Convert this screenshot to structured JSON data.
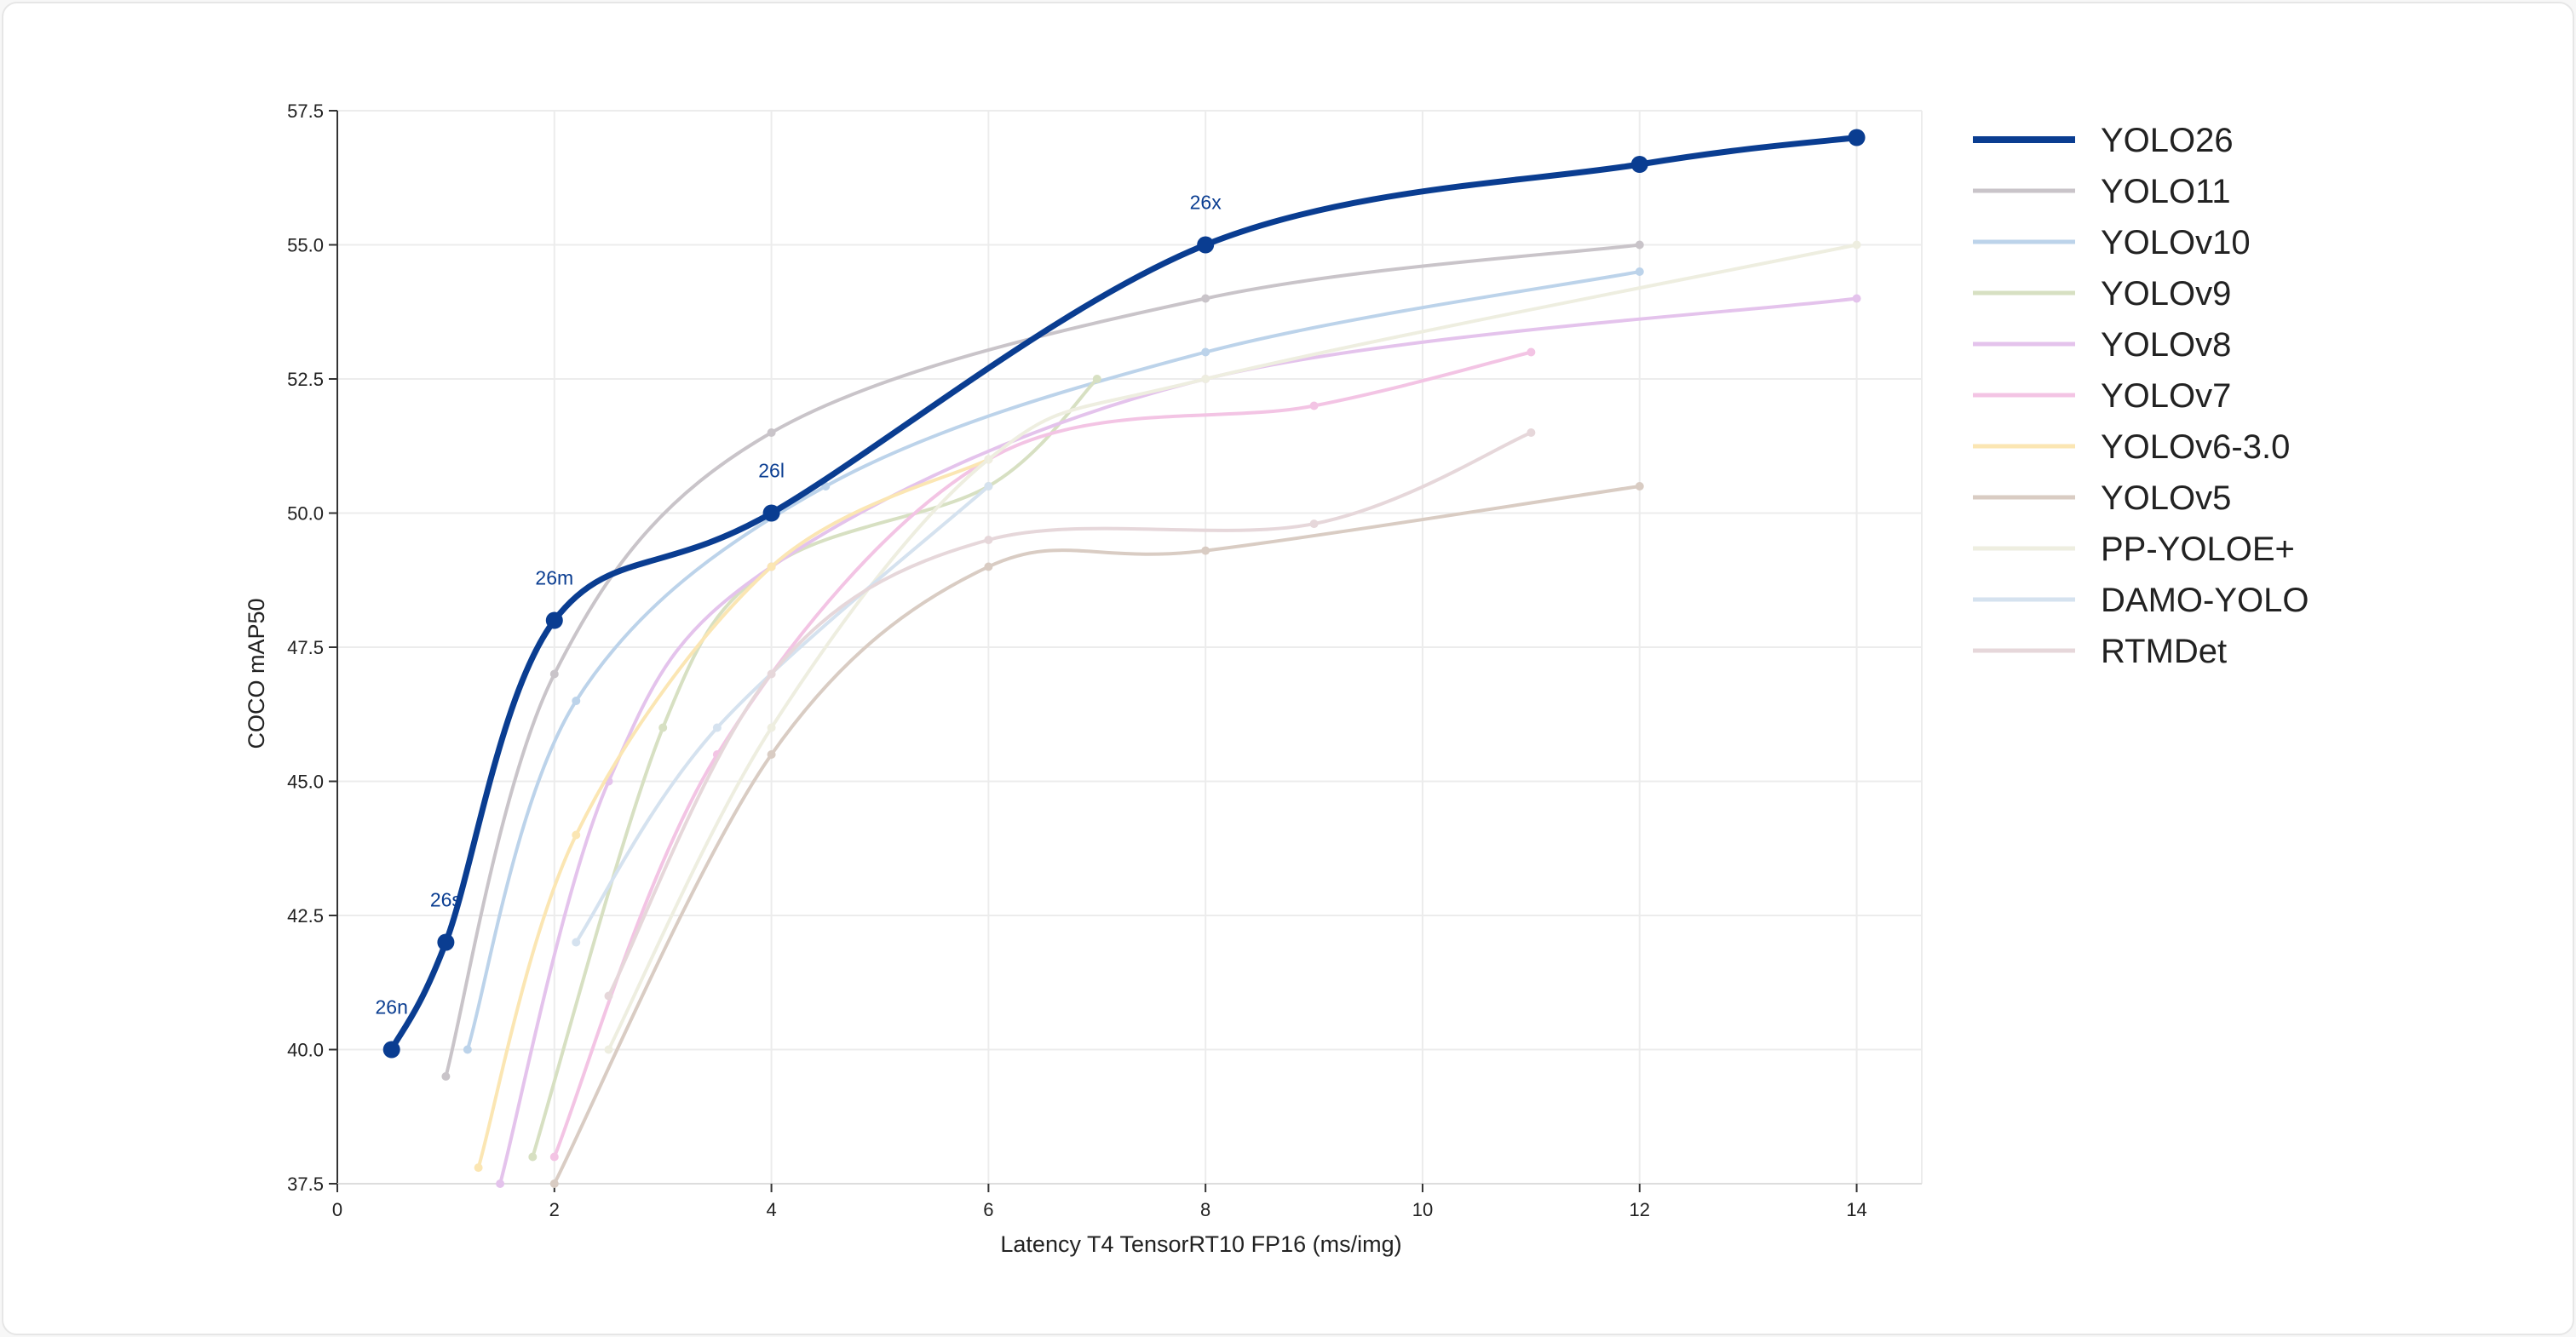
{
  "chart_data": {
    "type": "line",
    "title": "",
    "xlabel": "Latency T4 TensorRT10 FP16 (ms/img)",
    "ylabel": "COCO mAP50",
    "xlim": [
      0,
      14.6
    ],
    "ylim": [
      37.5,
      57.5
    ],
    "x_ticks": [
      0,
      2,
      4,
      6,
      8,
      10,
      12,
      14
    ],
    "y_ticks": [
      37.5,
      40.0,
      42.5,
      45.0,
      47.5,
      50.0,
      52.5,
      55.0,
      57.5
    ],
    "grid": true,
    "legend_position": "right",
    "series": [
      {
        "name": "YOLO26",
        "color": "#0a3d91",
        "highlight": true,
        "points": [
          [
            0.5,
            40.0
          ],
          [
            1.0,
            42.0
          ],
          [
            2.0,
            48.0
          ],
          [
            4.0,
            50.0
          ],
          [
            8.0,
            55.0
          ],
          [
            12.0,
            56.5
          ],
          [
            14.0,
            57.0
          ]
        ],
        "point_labels": [
          "26n",
          "26s",
          "26m",
          "26l",
          "26x",
          "",
          ""
        ]
      },
      {
        "name": "YOLO11",
        "color": "#c9c4c9",
        "points": [
          [
            1.0,
            39.5
          ],
          [
            2.0,
            47.0
          ],
          [
            4.0,
            51.5
          ],
          [
            8.0,
            54.0
          ],
          [
            12.0,
            55.0
          ]
        ]
      },
      {
        "name": "YOLOv10",
        "color": "#bcd3ea",
        "points": [
          [
            1.2,
            40.0
          ],
          [
            2.2,
            46.5
          ],
          [
            4.5,
            50.5
          ],
          [
            8.0,
            53.0
          ],
          [
            12.0,
            54.5
          ]
        ]
      },
      {
        "name": "YOLOv9",
        "color": "#d7e0c2",
        "points": [
          [
            1.8,
            38.0
          ],
          [
            3.0,
            46.0
          ],
          [
            4.0,
            49.0
          ],
          [
            6.0,
            50.5
          ],
          [
            7.0,
            52.5
          ]
        ]
      },
      {
        "name": "YOLOv8",
        "color": "#e4c3ec",
        "points": [
          [
            1.5,
            37.5
          ],
          [
            2.5,
            45.0
          ],
          [
            4.0,
            49.0
          ],
          [
            8.0,
            52.5
          ],
          [
            14.0,
            54.0
          ]
        ]
      },
      {
        "name": "YOLOv7",
        "color": "#f3c4e4",
        "points": [
          [
            2.0,
            38.0
          ],
          [
            3.5,
            45.5
          ],
          [
            6.0,
            51.0
          ],
          [
            9.0,
            52.0
          ],
          [
            11.0,
            53.0
          ]
        ]
      },
      {
        "name": "YOLOv6-3.0",
        "color": "#fbe6b3",
        "points": [
          [
            1.3,
            37.8
          ],
          [
            2.2,
            44.0
          ],
          [
            4.0,
            49.0
          ],
          [
            6.0,
            51.0
          ]
        ]
      },
      {
        "name": "YOLOv5",
        "color": "#d9ccc3",
        "points": [
          [
            2.0,
            37.5
          ],
          [
            4.0,
            45.5
          ],
          [
            6.0,
            49.0
          ],
          [
            8.0,
            49.3
          ],
          [
            12.0,
            50.5
          ]
        ]
      },
      {
        "name": "PP-YOLOE+",
        "color": "#eeeee0",
        "points": [
          [
            2.5,
            40.0
          ],
          [
            4.0,
            46.0
          ],
          [
            6.0,
            51.0
          ],
          [
            8.0,
            52.5
          ],
          [
            14.0,
            55.0
          ]
        ]
      },
      {
        "name": "DAMO-YOLO",
        "color": "#d5e2ef",
        "points": [
          [
            2.2,
            42.0
          ],
          [
            3.5,
            46.0
          ],
          [
            6.0,
            50.5
          ]
        ]
      },
      {
        "name": "RTMDet",
        "color": "#e6d7da",
        "points": [
          [
            2.5,
            41.0
          ],
          [
            4.0,
            47.0
          ],
          [
            6.0,
            49.5
          ],
          [
            9.0,
            49.8
          ],
          [
            11.0,
            51.5
          ]
        ]
      }
    ]
  }
}
